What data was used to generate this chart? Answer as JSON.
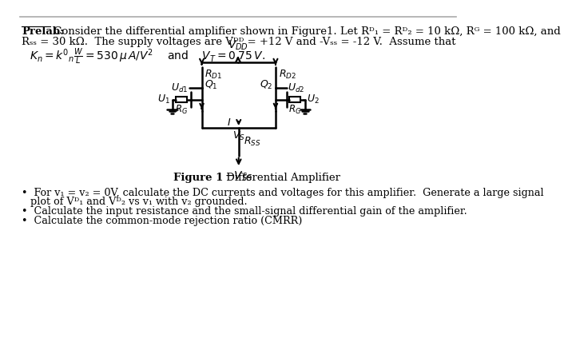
{
  "title_bold": "Prelab:",
  "title_text": " Consider the differential amplifier shown in Figure1. Let Rᴰ₁ = Rᴰ₂ = 10 kΩ, Rᴳ = 100 kΩ, and",
  "line2": "Rₛₛ = 30 kΩ.  The supply voltages are Vᴰᴰ = +12 V and -Vₛₛ = -12 V.  Assume that",
  "fig_caption_bold": "Figure 1",
  "fig_caption": " Differential Amplifier",
  "bullet1": "For v₁ = v₂ = 0V, calculate the DC currents and voltages for this amplifier.  Generate a large signal",
  "bullet1b": "plot of Vᴰ₁ and Vᴰ₂ vs v₁ with v₂ grounded.",
  "bullet2": "Calculate the input resistance and the small-signal differential gain of the amplifier.",
  "bullet3": "Calculate the common-mode rejection ratio (CMRR)",
  "bg_color": "#ffffff",
  "text_color": "#000000"
}
